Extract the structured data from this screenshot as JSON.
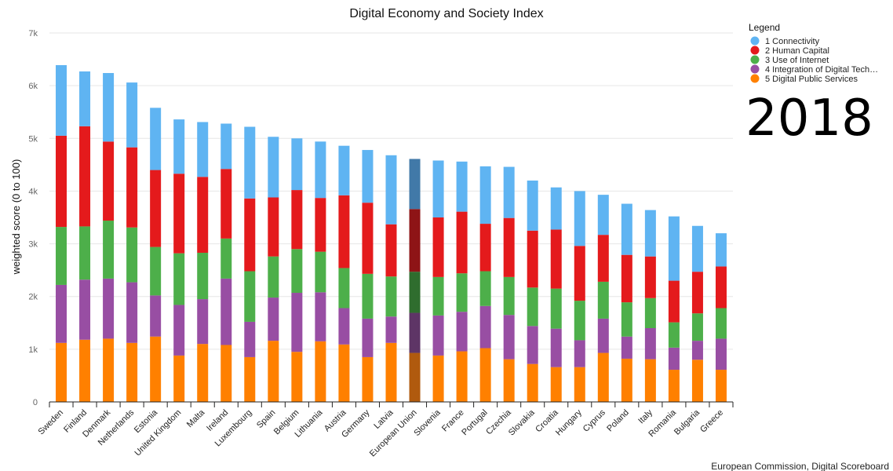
{
  "chart_data": {
    "type": "bar",
    "stacked": true,
    "title": "Digital Economy and Society Index",
    "ylabel": "weighted score (0 to 100)",
    "xlabel": "",
    "ylim": [
      0,
      7000
    ],
    "yticks": [
      0,
      1000,
      2000,
      3000,
      4000,
      5000,
      6000,
      7000
    ],
    "ytick_labels": [
      "0",
      "1k",
      "2k",
      "3k",
      "4k",
      "5k",
      "6k",
      "7k"
    ],
    "grid": true,
    "legend": {
      "title": "Legend",
      "position": "top-right"
    },
    "year": "2018",
    "source": "European Commission, Digital Scoreboard",
    "highlight": "European Union",
    "categories": [
      "Sweden",
      "Finland",
      "Denmark",
      "Netherlands",
      "Estonia",
      "United Kingdom",
      "Malta",
      "Ireland",
      "Luxembourg",
      "Spain",
      "Belgium",
      "Lithuania",
      "Austria",
      "Germany",
      "Latvia",
      "European Union",
      "Slovenia",
      "France",
      "Portugal",
      "Czechia",
      "Slovakia",
      "Croatia",
      "Hungary",
      "Cyprus",
      "Poland",
      "Italy",
      "Romania",
      "Bulgaria",
      "Greece"
    ],
    "series": [
      {
        "name": "5 Digital Public Services",
        "color": "#ff8000",
        "highlight_color": "#b05a0e",
        "values": [
          1120,
          1180,
          1200,
          1120,
          1240,
          880,
          1100,
          1080,
          850,
          1160,
          950,
          1150,
          1090,
          850,
          1120,
          930,
          880,
          960,
          1020,
          810,
          720,
          660,
          660,
          930,
          820,
          810,
          610,
          800,
          610
        ]
      },
      {
        "name": "4 Integration of Digital Tech…",
        "color": "#984ea3",
        "highlight_color": "#5e3566",
        "values": [
          1100,
          1140,
          1140,
          1150,
          780,
          960,
          850,
          1260,
          670,
          820,
          1120,
          930,
          690,
          730,
          500,
          760,
          760,
          750,
          800,
          840,
          720,
          730,
          510,
          650,
          420,
          590,
          420,
          360,
          590
        ]
      },
      {
        "name": "3 Use of Internet",
        "color": "#4daf4a",
        "highlight_color": "#2f6d2e",
        "values": [
          1100,
          1010,
          1100,
          1040,
          920,
          980,
          880,
          760,
          960,
          780,
          830,
          770,
          760,
          850,
          760,
          780,
          730,
          730,
          660,
          720,
          730,
          760,
          750,
          700,
          650,
          570,
          480,
          520,
          580
        ]
      },
      {
        "name": "2 Human Capital",
        "color": "#e41a1c",
        "highlight_color": "#8e1416",
        "values": [
          1730,
          1900,
          1500,
          1520,
          1460,
          1510,
          1440,
          1320,
          1380,
          1120,
          1120,
          1020,
          1380,
          1350,
          990,
          1190,
          1130,
          1170,
          900,
          1120,
          1080,
          1120,
          1040,
          890,
          900,
          790,
          790,
          790,
          790
        ]
      },
      {
        "name": "1 Connectivity",
        "color": "#5fb4f2",
        "highlight_color": "#4179a8",
        "values": [
          1340,
          1040,
          1300,
          1230,
          1180,
          1030,
          1040,
          860,
          1360,
          1150,
          980,
          1070,
          940,
          1000,
          1310,
          950,
          1080,
          950,
          1090,
          970,
          950,
          800,
          1040,
          760,
          970,
          880,
          1220,
          870,
          630
        ]
      }
    ]
  }
}
